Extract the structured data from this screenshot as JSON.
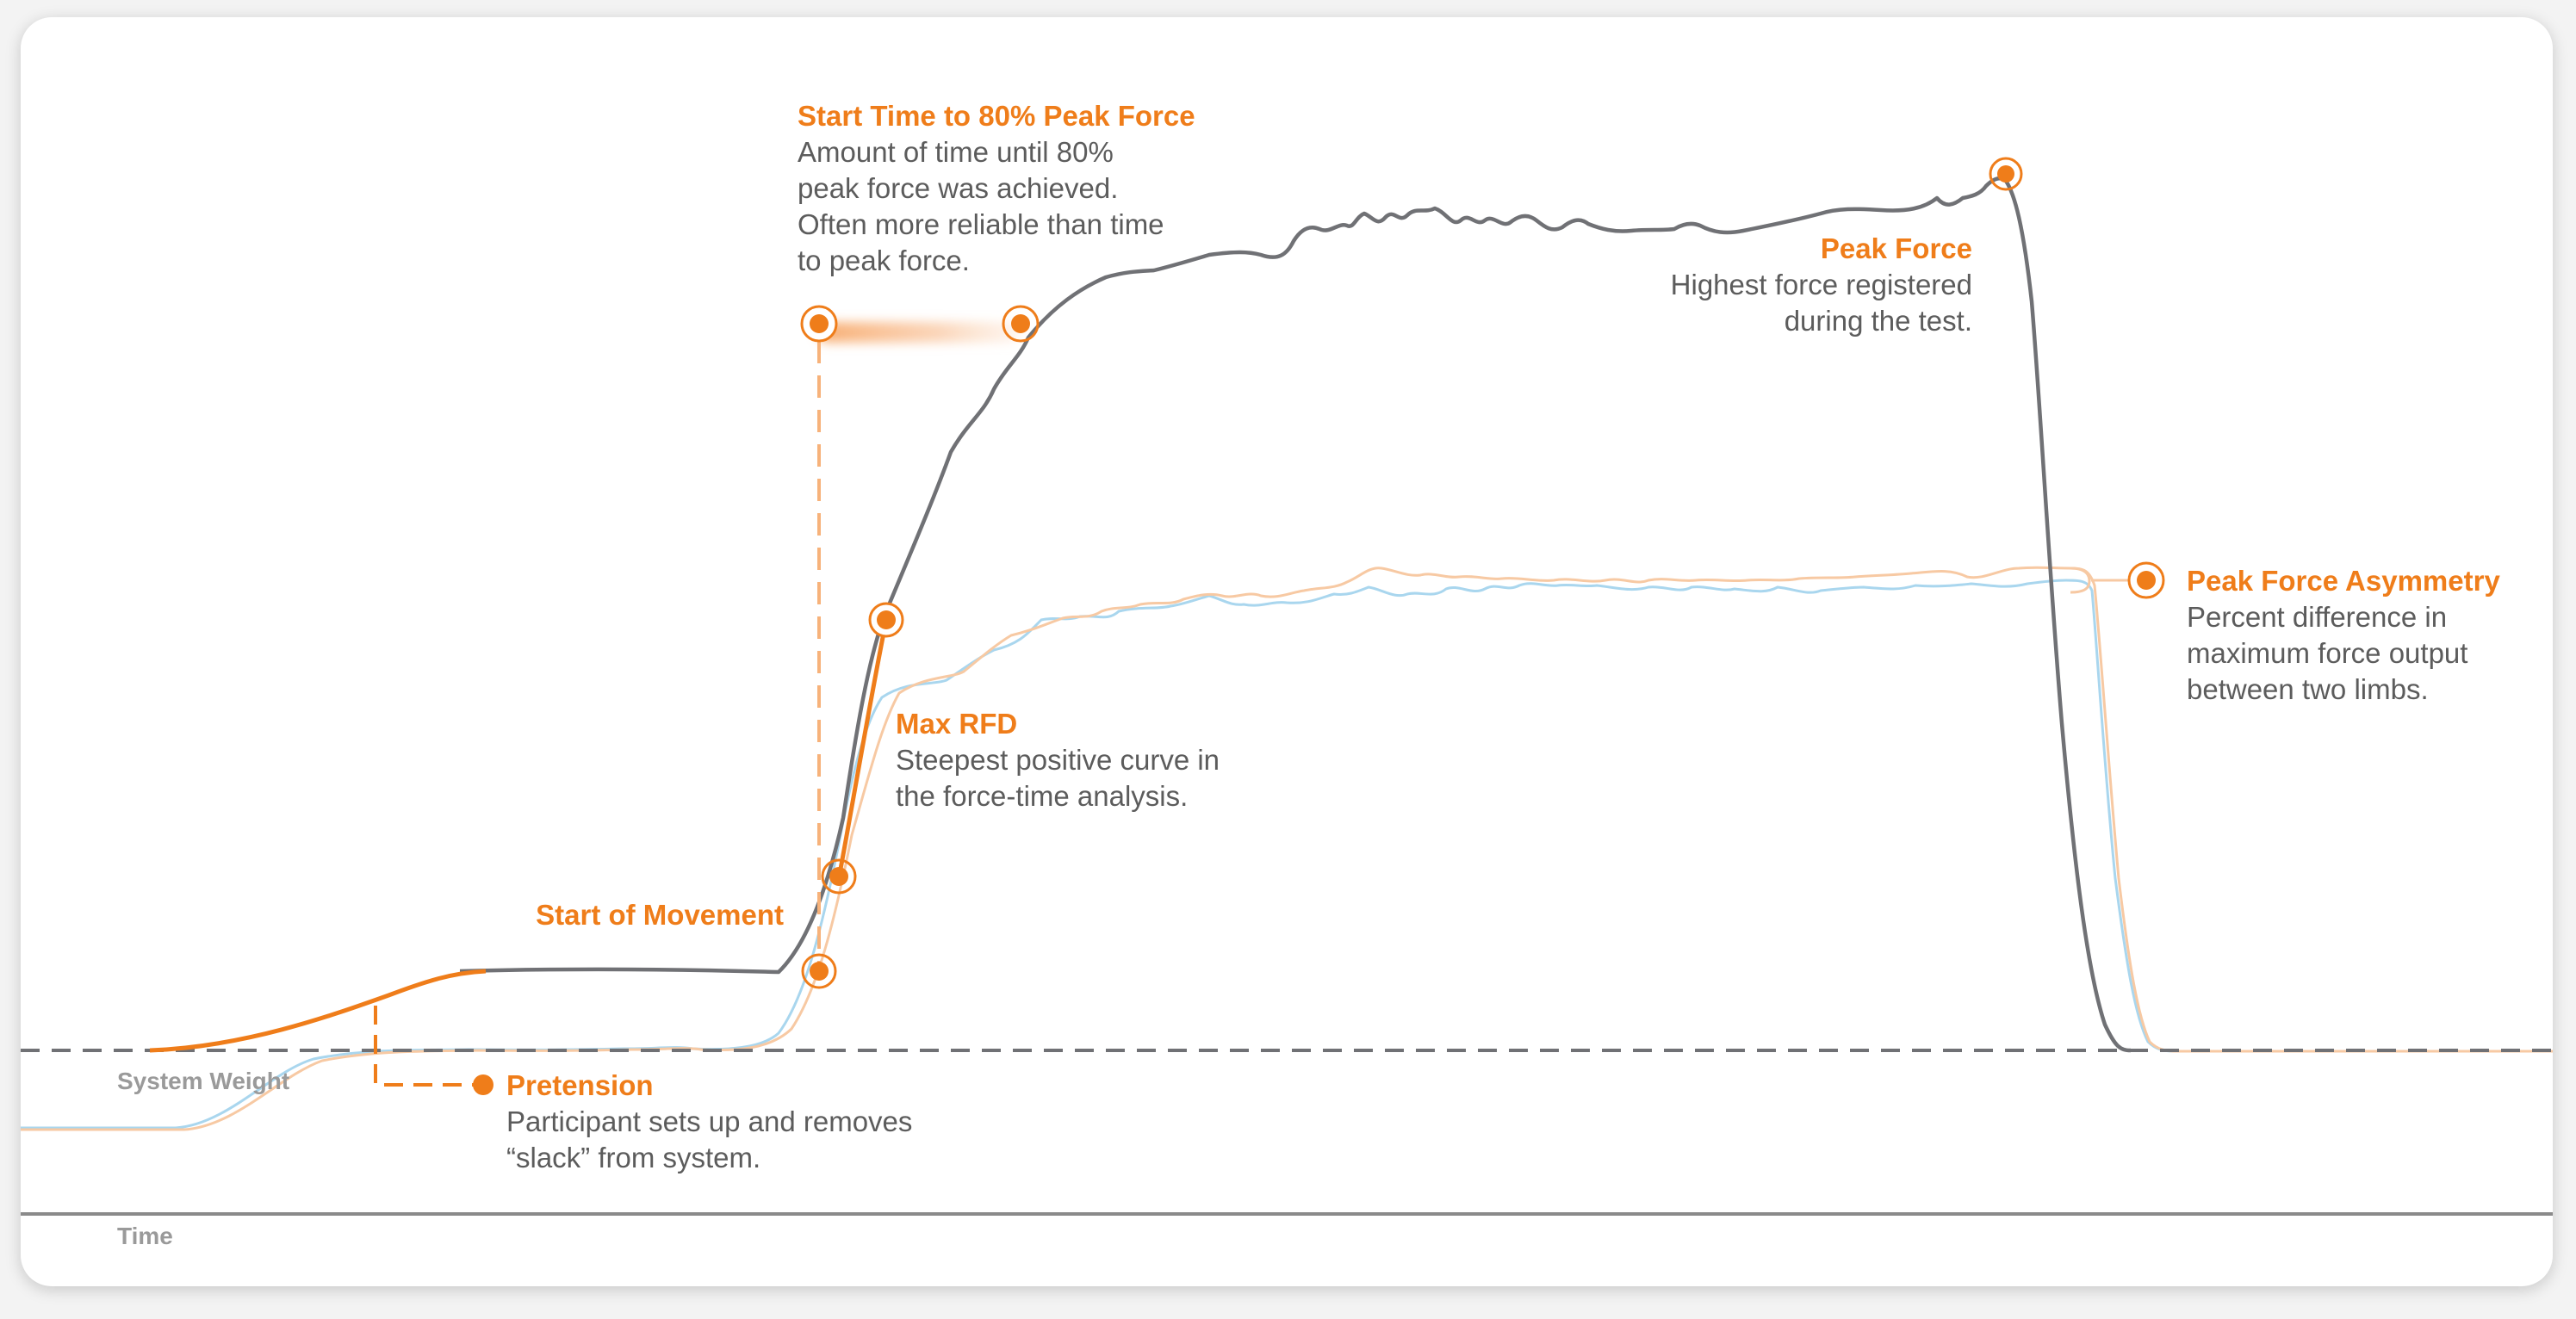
{
  "colors": {
    "orange": "#ef7d1a",
    "total_force": "#707175",
    "left_limb": "#f7c9a3",
    "right_limb": "#a9d6ee",
    "baseline": "#707175"
  },
  "axis": {
    "system_weight": "System Weight",
    "time": "Time"
  },
  "annotations": {
    "start_80": {
      "title": "Start Time to 80% Peak Force",
      "lines": [
        "Amount of time until 80%",
        "peak force was achieved.",
        "Often more reliable than time",
        "to peak force."
      ]
    },
    "peak_force": {
      "title": "Peak Force",
      "lines": [
        "Highest force registered",
        "during the test."
      ]
    },
    "peak_asym": {
      "title": "Peak Force Asymmetry",
      "lines": [
        "Percent difference in",
        "maximum force output",
        "between two limbs."
      ]
    },
    "max_rfd": {
      "title": "Max RFD",
      "lines": [
        "Steepest positive curve in",
        "the force-time analysis."
      ]
    },
    "start_move": {
      "title": "Start of Movement"
    },
    "pretension": {
      "title": "Pretension",
      "lines": [
        "Participant sets up and removes",
        "“slack” from system."
      ]
    }
  }
}
